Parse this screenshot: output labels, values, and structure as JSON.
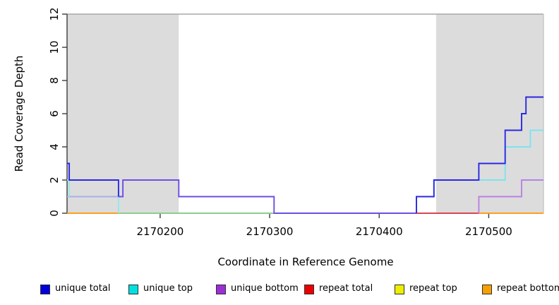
{
  "chart_data": {
    "type": "line",
    "step": true,
    "title": "",
    "xlabel": "Coordinate in Reference Genome",
    "ylabel": "Read Coverage Depth",
    "xlim": [
      2170115,
      2170550
    ],
    "ylim": [
      0,
      12
    ],
    "xticks": [
      2170200,
      2170300,
      2170400,
      2170500
    ],
    "yticks": [
      0,
      2,
      4,
      6,
      8,
      10,
      12
    ],
    "grid": false,
    "legend_position": "bottom",
    "shaded_regions": [
      {
        "from": 2170115,
        "to": 2170217,
        "color": "#dcdcdc"
      },
      {
        "from": 2170452,
        "to": 2170550,
        "color": "#dcdcdc"
      }
    ],
    "series": [
      {
        "name": "unique total",
        "color": "#2a28e4",
        "step_points": [
          [
            2170115,
            3
          ],
          [
            2170117,
            2
          ],
          [
            2170162,
            1
          ],
          [
            2170166,
            2
          ],
          [
            2170217,
            1
          ],
          [
            2170304,
            0
          ],
          [
            2170434,
            1
          ],
          [
            2170450,
            2
          ],
          [
            2170491,
            3
          ],
          [
            2170515,
            5
          ],
          [
            2170530,
            6
          ],
          [
            2170534,
            7
          ],
          [
            2170550,
            7
          ]
        ]
      },
      {
        "name": "unique top",
        "color": "#00e0e0",
        "step_points": [
          [
            2170115,
            2
          ],
          [
            2170117,
            1
          ],
          [
            2170162,
            0
          ],
          [
            2170434,
            1
          ],
          [
            2170450,
            2
          ],
          [
            2170515,
            4
          ],
          [
            2170538,
            5
          ],
          [
            2170550,
            5
          ]
        ]
      },
      {
        "name": "unique bottom",
        "color": "#9c2fd6",
        "step_points": [
          [
            2170115,
            1
          ],
          [
            2170166,
            2
          ],
          [
            2170217,
            1
          ],
          [
            2170304,
            0
          ],
          [
            2170491,
            1
          ],
          [
            2170530,
            2
          ],
          [
            2170550,
            2
          ]
        ]
      },
      {
        "name": "repeat total",
        "color": "#ea0000",
        "step_points": [
          [
            2170115,
            0
          ],
          [
            2170550,
            0
          ]
        ]
      },
      {
        "name": "repeat top",
        "color": "#eeee00",
        "step_points": [
          [
            2170115,
            0
          ],
          [
            2170550,
            0
          ]
        ]
      },
      {
        "name": "repeat bottom",
        "color": "#f4a000",
        "step_points": [
          [
            2170115,
            0
          ],
          [
            2170550,
            0
          ]
        ]
      }
    ],
    "render_segments": [
      {
        "name": "repeat-top-zero",
        "color": "#f0f000",
        "points": [
          [
            2170115,
            0
          ],
          [
            2170550,
            0
          ]
        ]
      },
      {
        "name": "repeat-total-zero",
        "color": "#de4455",
        "points": [
          [
            2170304,
            0
          ],
          [
            2170491,
            0
          ]
        ]
      },
      {
        "name": "repeat-bottom-left",
        "color": "#ff9f1c",
        "points": [
          [
            2170115,
            0
          ],
          [
            2170162,
            0
          ]
        ]
      },
      {
        "name": "repeat-bottom-right",
        "color": "#ff9f1c",
        "points": [
          [
            2170491,
            0
          ],
          [
            2170550,
            0
          ]
        ]
      },
      {
        "name": "zero-blend-green",
        "color": "#8fcc8f",
        "points": [
          [
            2170162,
            0
          ],
          [
            2170304,
            0
          ]
        ]
      },
      {
        "name": "one-blend-periwinkle",
        "color": "#a6aee8",
        "points": [
          [
            2170115,
            1
          ],
          [
            2170162,
            1
          ]
        ]
      },
      {
        "name": "cyan-left-spike",
        "color": "#93e7ec",
        "points": [
          [
            2170115,
            2
          ],
          [
            2170117,
            2
          ],
          [
            2170117,
            1
          ]
        ]
      },
      {
        "name": "cyan-left-drop",
        "color": "#93e7ec",
        "points": [
          [
            2170162,
            1
          ],
          [
            2170162,
            0
          ]
        ]
      },
      {
        "name": "violet-blend",
        "color": "#6e4ee2",
        "points": [
          [
            2170162,
            1
          ],
          [
            2170166,
            1
          ],
          [
            2170166,
            2
          ],
          [
            2170217,
            2
          ],
          [
            2170217,
            1
          ],
          [
            2170304,
            1
          ],
          [
            2170304,
            0
          ],
          [
            2170434,
            0
          ]
        ]
      },
      {
        "name": "cyan-right",
        "color": "#7ee3f0",
        "points": [
          [
            2170434,
            0
          ],
          [
            2170434,
            1
          ],
          [
            2170450,
            1
          ],
          [
            2170450,
            2
          ],
          [
            2170515,
            2
          ],
          [
            2170515,
            4
          ],
          [
            2170538,
            4
          ],
          [
            2170538,
            5
          ],
          [
            2170550,
            5
          ]
        ]
      },
      {
        "name": "purple-right",
        "color": "#b981e4",
        "points": [
          [
            2170491,
            0
          ],
          [
            2170491,
            1
          ],
          [
            2170530,
            1
          ],
          [
            2170530,
            2
          ],
          [
            2170550,
            2
          ]
        ]
      },
      {
        "name": "blue-left",
        "color": "#2a28e4",
        "points": [
          [
            2170115,
            3
          ],
          [
            2170117,
            3
          ],
          [
            2170117,
            2
          ],
          [
            2170162,
            2
          ],
          [
            2170162,
            1
          ]
        ]
      },
      {
        "name": "blue-right",
        "color": "#2a28e4",
        "points": [
          [
            2170434,
            0
          ],
          [
            2170434,
            1
          ],
          [
            2170450,
            1
          ],
          [
            2170450,
            2
          ],
          [
            2170491,
            2
          ],
          [
            2170491,
            3
          ],
          [
            2170515,
            3
          ],
          [
            2170515,
            5
          ],
          [
            2170530,
            5
          ],
          [
            2170530,
            6
          ],
          [
            2170534,
            6
          ],
          [
            2170534,
            7
          ],
          [
            2170550,
            7
          ]
        ]
      }
    ]
  },
  "legend": {
    "items": [
      {
        "label": "unique total",
        "fill": "#0000dc"
      },
      {
        "label": "unique top",
        "fill": "#00e0e0"
      },
      {
        "label": "unique bottom",
        "fill": "#9c2fd6"
      },
      {
        "label": "repeat total",
        "fill": "#ea0000"
      },
      {
        "label": "repeat top",
        "fill": "#eeee00"
      },
      {
        "label": "repeat bottom",
        "fill": "#f4a000"
      }
    ]
  },
  "style": {
    "band_color": "#dcdcdc",
    "spine_dark": "#3c3c3c",
    "spine_light_top": "#a8a8a8",
    "spine_light_right": "#c6c6c6",
    "tick_color": "#3c3c3c"
  }
}
